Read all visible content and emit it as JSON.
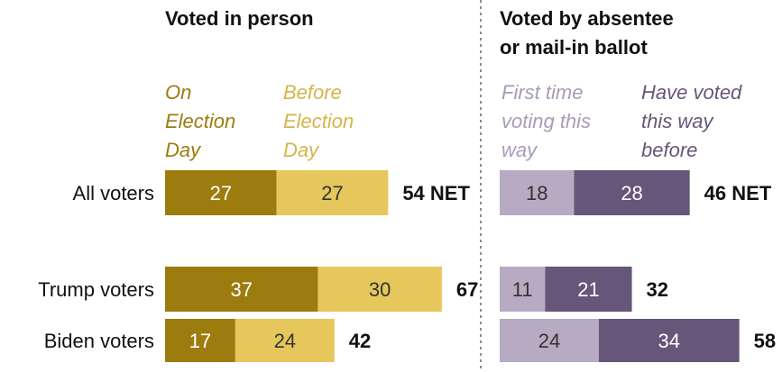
{
  "chart_data": {
    "type": "bar",
    "stacked": true,
    "orientation": "horizontal",
    "categories": [
      "All voters",
      "Trump voters",
      "Biden voters"
    ],
    "panels": [
      {
        "title_lines": [
          "Voted in person"
        ],
        "series": [
          {
            "name_lines": [
              "On",
              "Election",
              "Day"
            ],
            "values": [
              27,
              37,
              17
            ],
            "color": "#9c7c0e",
            "label_color": "#ffffff",
            "legend_color": "#9c7c0e"
          },
          {
            "name_lines": [
              "Before",
              "Election",
              "Day"
            ],
            "values": [
              27,
              30,
              24
            ],
            "color": "#e6c75c",
            "label_color": "#333333",
            "legend_color": "#d4b54a"
          }
        ],
        "totals": [
          "54 NET",
          "67",
          "42"
        ]
      },
      {
        "title_lines": [
          "Voted by absentee",
          "or mail-in ballot"
        ],
        "series": [
          {
            "name_lines": [
              "First time",
              "voting this",
              "way"
            ],
            "values": [
              18,
              11,
              24
            ],
            "color": "#b7aac3",
            "label_color": "#333333",
            "legend_color": "#a99bb6"
          },
          {
            "name_lines": [
              "Have voted",
              "this way",
              "before"
            ],
            "values": [
              28,
              21,
              34
            ],
            "color": "#665679",
            "label_color": "#ffffff",
            "legend_color": "#665679"
          }
        ],
        "totals": [
          "46 NET",
          "32",
          "58"
        ]
      }
    ]
  }
}
